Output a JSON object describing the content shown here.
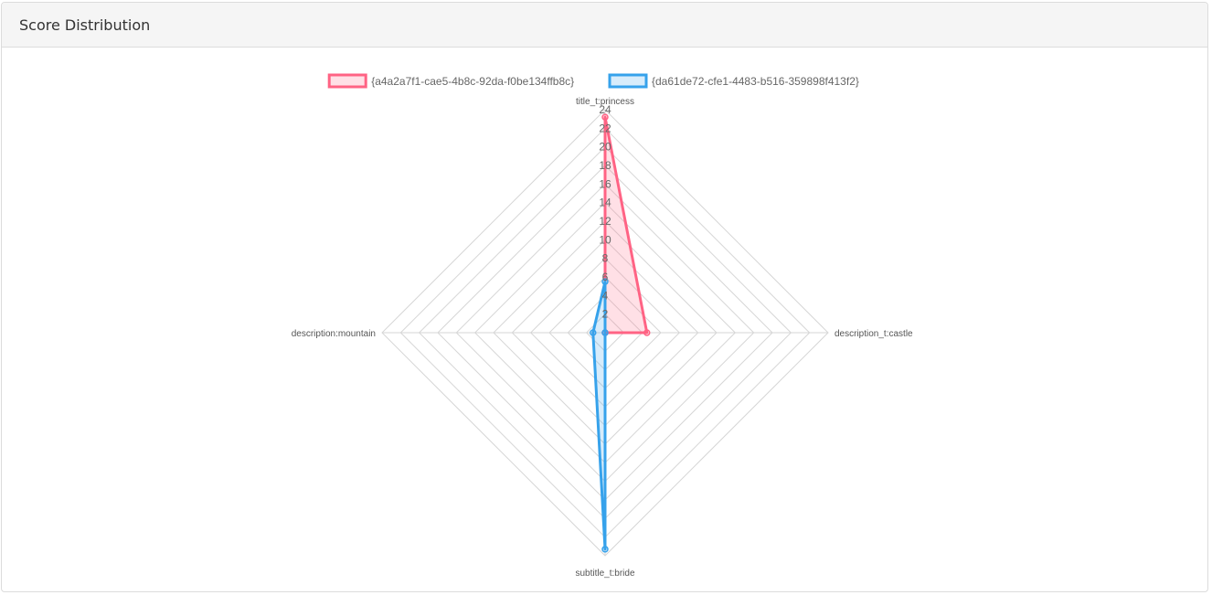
{
  "panel": {
    "title": "Score Distribution"
  },
  "chart_data": {
    "type": "radar",
    "labels": [
      "title_t:princess",
      "description_t:castle",
      "subtitle_t:bride",
      "description:mountain"
    ],
    "r_ticks": [
      "2",
      "4",
      "6",
      "8",
      "10",
      "12",
      "14",
      "16",
      "18",
      "20",
      "22",
      "24"
    ],
    "r_range": [
      0,
      24
    ],
    "legend_position": "top",
    "series": [
      {
        "name": "{a4a2a7f1-cae5-4b8c-92da-f0be134ffb8c}",
        "values": [
          23.2,
          4.5,
          0,
          0
        ],
        "color": "#ff6384",
        "fill": "rgba(255,99,132,0.2)"
      },
      {
        "name": "{da61de72-cfe1-4483-b516-359898f413f2}",
        "values": [
          5.5,
          0,
          23.3,
          1.3
        ],
        "color": "#36a2eb",
        "fill": "rgba(54,162,235,0.2)"
      }
    ]
  }
}
